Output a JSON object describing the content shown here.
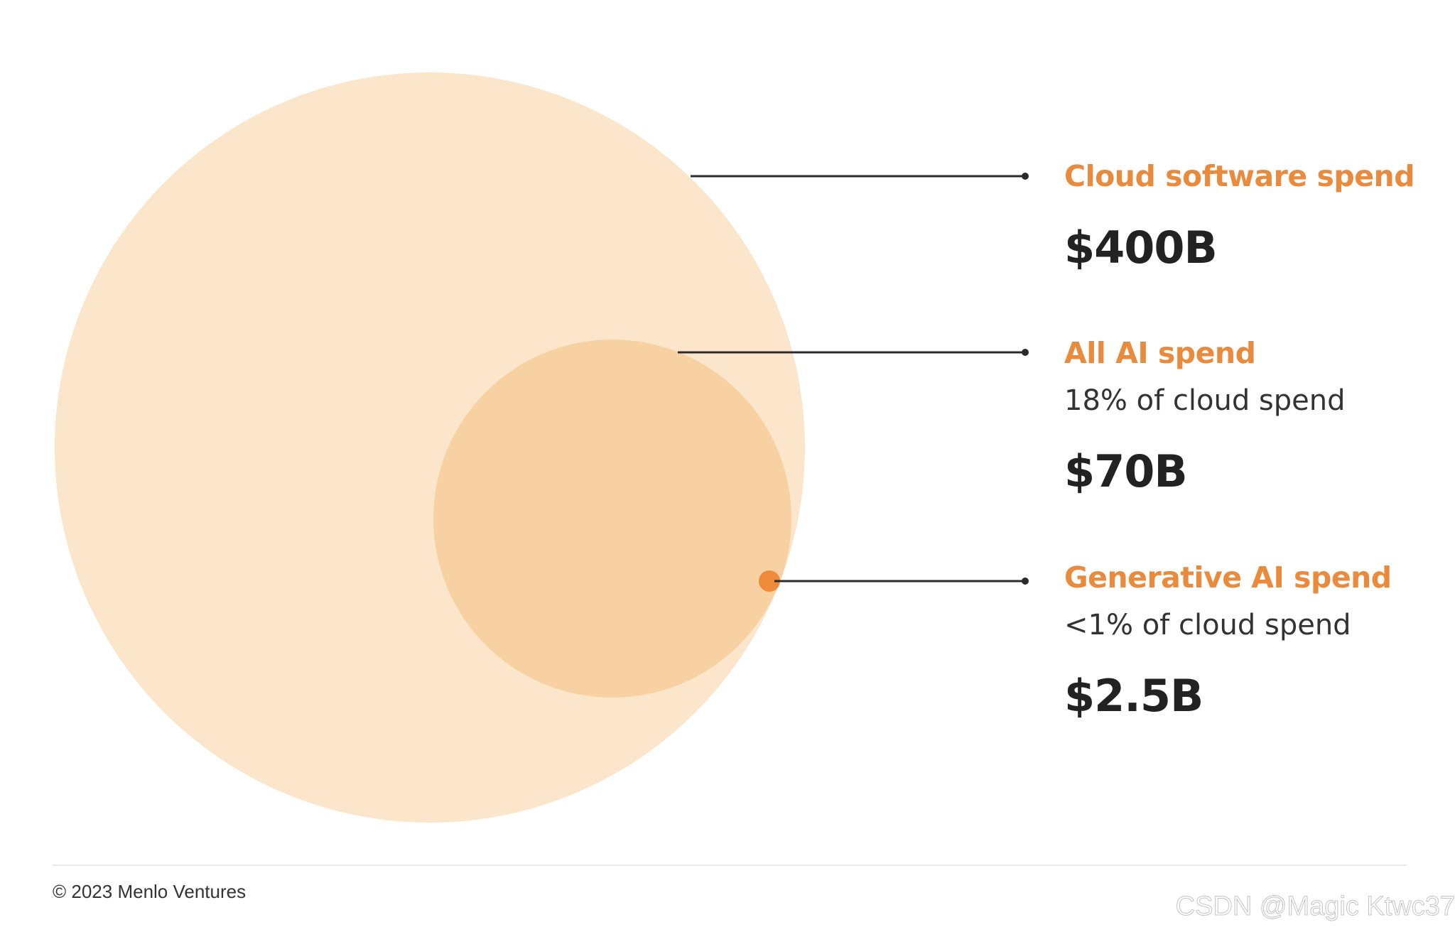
{
  "chart_data": {
    "type": "nested-bubble",
    "series": [
      {
        "key": "cloud",
        "label": "Cloud software spend",
        "note": "",
        "value_label": "$400B",
        "value": 400,
        "color": "#fbe6cc"
      },
      {
        "key": "all_ai",
        "label": "All AI spend",
        "note": "18% of cloud spend",
        "value_label": "$70B",
        "value": 70,
        "color": "#f7d1a2"
      },
      {
        "key": "gen_ai",
        "label": "Generative AI spend",
        "note": "<1% of cloud spend",
        "value_label": "$2.5B",
        "value": 2.5,
        "color": "#ef8a3a"
      }
    ],
    "accent_color": "#e98a3c",
    "value_color": "#222222",
    "leader_color": "#2b2b2b"
  },
  "footer": {
    "copyright": "© 2023 Menlo Ventures"
  },
  "watermark": "CSDN @Magic Ktwc37"
}
